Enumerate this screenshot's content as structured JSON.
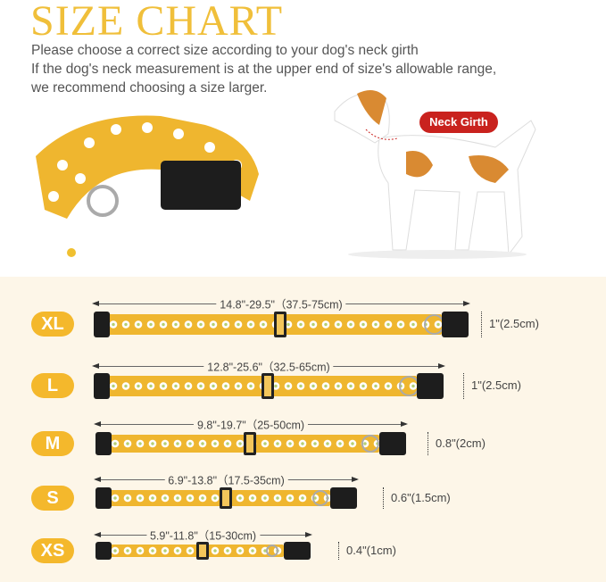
{
  "header": {
    "title": "SIZE CHART",
    "lines": [
      "Please choose a correct size according to your dog's neck girth",
      "If the dog's neck measurement is at the upper end of size's allowable range,",
      "we recommend choosing a size larger."
    ]
  },
  "dog": {
    "label": "Neck Girth"
  },
  "colors": {
    "accent": "#f4b82c",
    "badge_red": "#c9221e",
    "background": "#fdf6e8"
  },
  "sizes": [
    {
      "size": "XL",
      "length": "14.8\"-29.5\"（37.5-75cm)",
      "width": "1\"(2.5cm)"
    },
    {
      "size": "L",
      "length": "12.8\"-25.6\"（32.5-65cm)",
      "width": "1\"(2.5cm)"
    },
    {
      "size": "M",
      "length": "9.8\"-19.7\"（25-50cm)",
      "width": "0.8\"(2cm)"
    },
    {
      "size": "S",
      "length": "6.9\"-13.8\"（17.5-35cm)",
      "width": "0.6\"(1.5cm)"
    },
    {
      "size": "XS",
      "length": "5.9\"-11.8\"（15-30cm)",
      "width": "0.4\"(1cm)"
    }
  ]
}
